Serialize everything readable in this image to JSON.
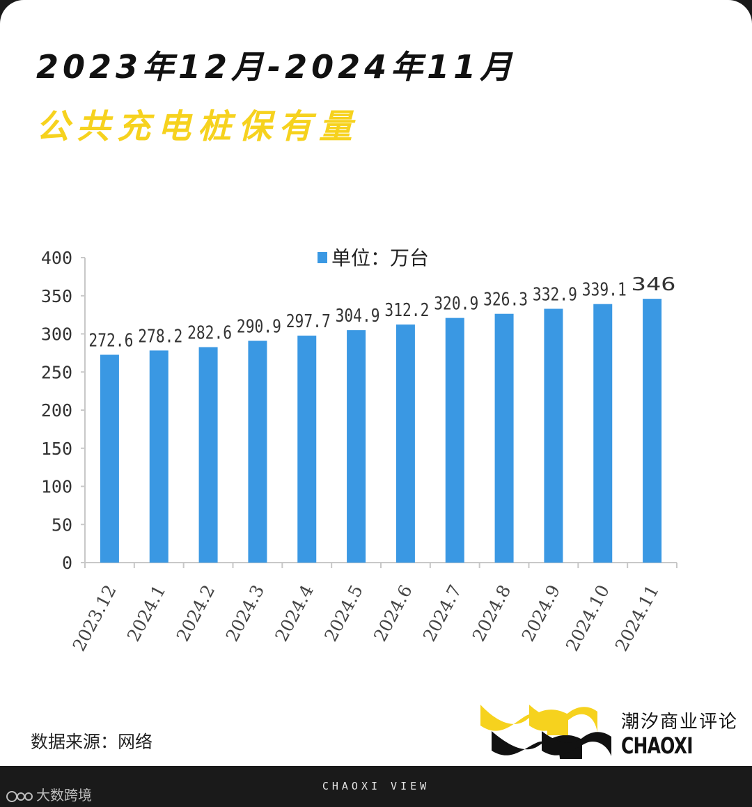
{
  "header": {
    "title": "2023年12月-2024年11月",
    "subtitle": "公共充电桩保有量"
  },
  "source": {
    "label": "数据来源：",
    "value": "网络"
  },
  "brand": {
    "name_cn": "潮汐商业评论",
    "name_en": "CHAOXI",
    "footer": "CHAOXI VIEW",
    "logo_icon": "chaoxi-wave-logo"
  },
  "watermark": {
    "text": "大数跨境",
    "icon": "dashu-logo-icon"
  },
  "colors": {
    "bar": "#3a98e3",
    "title": "#111111",
    "subtitle": "#f6d21e",
    "logo_yellow": "#f6d21e",
    "logo_black": "#111111"
  },
  "chart_data": {
    "type": "bar",
    "legend": "单位：万台",
    "legend_position": "top",
    "categories": [
      "2023.12",
      "2024.1",
      "2024.2",
      "2024.3",
      "2024.4",
      "2024.5",
      "2024.6",
      "2024.7",
      "2024.8",
      "2024.9",
      "2024.10",
      "2024.11"
    ],
    "values": [
      272.6,
      278.2,
      282.6,
      290.9,
      297.7,
      304.9,
      312.2,
      320.9,
      326.3,
      332.9,
      339.1,
      346
    ],
    "data_labels": [
      "272.6",
      "278.2",
      "282.6",
      "290.9",
      "297.7",
      "304.9",
      "312.2",
      "320.9",
      "326.3",
      "332.9",
      "339.1",
      "346"
    ],
    "ylim": [
      0,
      400
    ],
    "yticks": [
      0,
      50,
      100,
      150,
      200,
      250,
      300,
      350,
      400
    ],
    "grid": false
  }
}
